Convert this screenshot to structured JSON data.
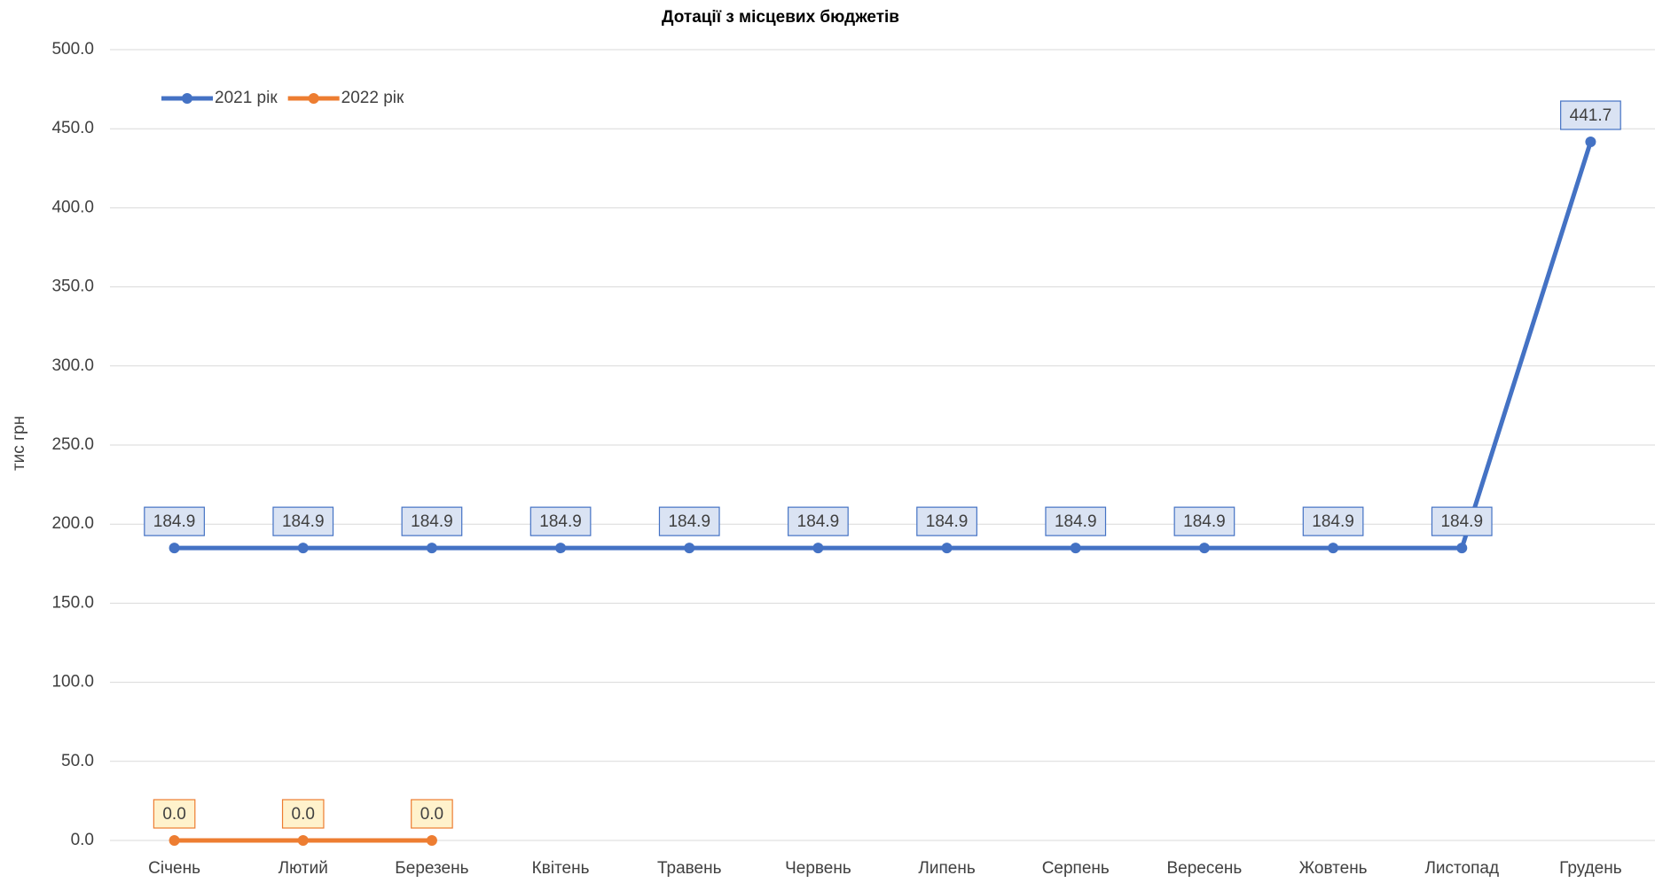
{
  "chart_data": {
    "type": "line",
    "title": "Дотації з місцевих бюджетів",
    "y_label": "тис грн",
    "categories": [
      "Січень",
      "Лютий",
      "Березень",
      "Квітень",
      "Травень",
      "Червень",
      "Липень",
      "Серпень",
      "Вересень",
      "Жовтень",
      "Листопад",
      "Грудень"
    ],
    "series": [
      {
        "name": "2021 рік",
        "color": "#4472c4",
        "label_fill": "#dae3f3",
        "values": [
          184.9,
          184.9,
          184.9,
          184.9,
          184.9,
          184.9,
          184.9,
          184.9,
          184.9,
          184.9,
          184.9,
          441.7
        ]
      },
      {
        "name": "2022 рік",
        "color": "#ed7d31",
        "label_fill": "#fff2cc",
        "values": [
          0,
          0,
          0,
          null,
          null,
          null,
          null,
          null,
          null,
          null,
          null,
          null
        ],
        "value_labels": [
          "0.0",
          "0.0",
          "0.0",
          null,
          null,
          null,
          null,
          null,
          null,
          null,
          null,
          null
        ]
      }
    ],
    "ylim": [
      0,
      500
    ],
    "yticks": [
      {
        "value": 0,
        "label": "0.0"
      },
      {
        "value": 50,
        "label": "50.0"
      },
      {
        "value": 100,
        "label": "100.0"
      },
      {
        "value": 150,
        "label": "150.0"
      },
      {
        "value": 200,
        "label": "200.0"
      },
      {
        "value": 250,
        "label": "250.0"
      },
      {
        "value": 300,
        "label": "300.0"
      },
      {
        "value": 350,
        "label": "350.0"
      },
      {
        "value": 400,
        "label": "400.0"
      },
      {
        "value": 450,
        "label": "450.0"
      },
      {
        "value": 500,
        "label": "500.0"
      }
    ],
    "grid": true,
    "legend": "top-left"
  }
}
